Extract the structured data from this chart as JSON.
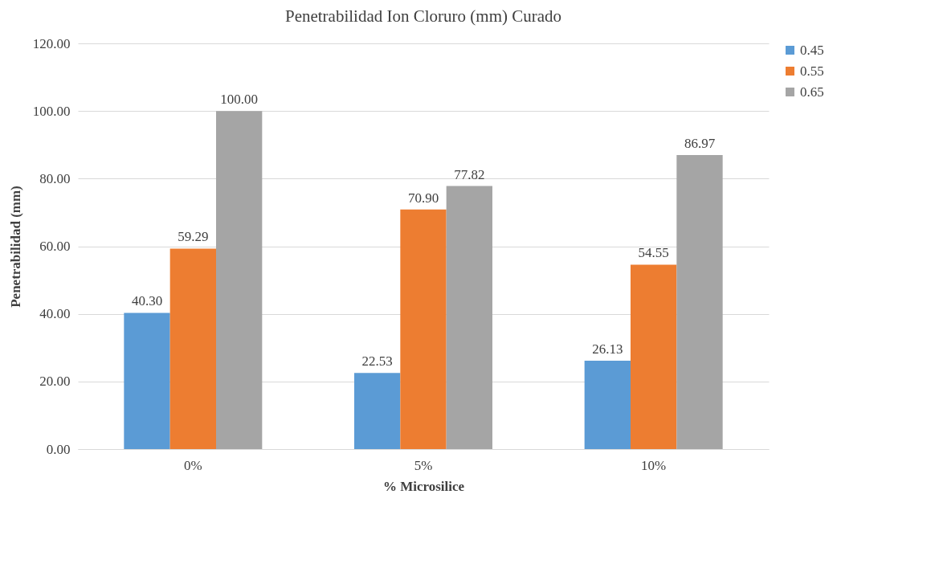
{
  "chart_data": {
    "type": "bar",
    "title": "Penetrabilidad Ion Cloruro (mm) Curado",
    "xlabel": "% Microsilice",
    "ylabel": "Penetrabilidad (mm)",
    "categories": [
      "0%",
      "5%",
      "10%"
    ],
    "series": [
      {
        "name": "0.45",
        "color": "#5b9bd5",
        "values": [
          40.3,
          22.53,
          26.13
        ],
        "value_labels": [
          "40.30",
          "22.53",
          "26.13"
        ]
      },
      {
        "name": "0.55",
        "color": "#ed7d31",
        "values": [
          59.29,
          70.9,
          54.55
        ],
        "value_labels": [
          "59.29",
          "70.90",
          "54.55"
        ]
      },
      {
        "name": "0.65",
        "color": "#a5a5a5",
        "values": [
          100.0,
          77.82,
          86.97
        ],
        "value_labels": [
          "100.00",
          "77.82",
          "86.97"
        ]
      }
    ],
    "ylim": [
      0,
      120
    ],
    "yticks": [
      {
        "value": 0,
        "label": "0.00"
      },
      {
        "value": 20,
        "label": "20.00"
      },
      {
        "value": 40,
        "label": "40.00"
      },
      {
        "value": 60,
        "label": "60.00"
      },
      {
        "value": 80,
        "label": "80.00"
      },
      {
        "value": 100,
        "label": "100.00"
      },
      {
        "value": 120,
        "label": "120.00"
      }
    ],
    "grid": "y",
    "legend": "right"
  }
}
